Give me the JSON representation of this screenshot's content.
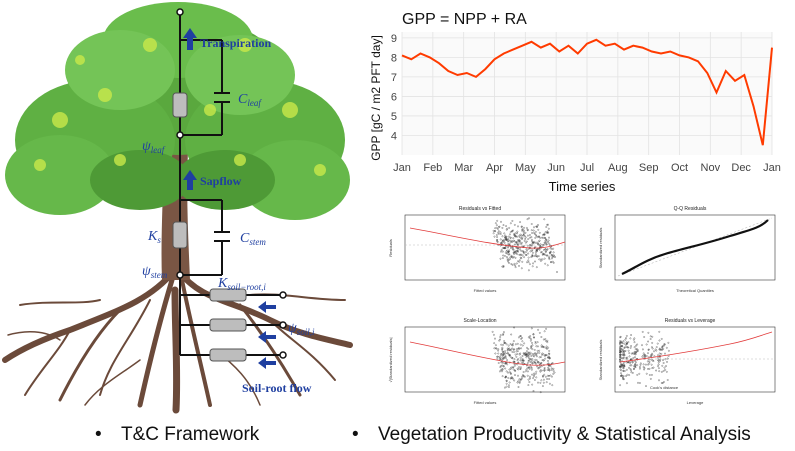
{
  "tree_panel": {
    "labels": {
      "transpiration": "Transpiration",
      "c_leaf": "C",
      "c_leaf_sub": "leaf",
      "psi_leaf": "ψ",
      "psi_leaf_sub": "leaf",
      "sapflow": "Sapflow",
      "ks": "K",
      "ks_sub": "s",
      "c_stem": "C",
      "c_stem_sub": "stem",
      "psi_stem": "ψ",
      "psi_stem_sub": "stem",
      "k_soil_root": "K",
      "k_soil_root_sub": "soil−root,i",
      "psi_soil": "ψ",
      "psi_soil_sub": "soil,i",
      "soil_root_flow": "Soil-root flow"
    }
  },
  "captions": {
    "left": "T&C Framework",
    "right": "Vegetation Productivity & Statistical Analysis",
    "bullet": "•"
  },
  "chart_data": [
    {
      "type": "line",
      "title": "GPP = NPP + RA",
      "xlabel": "Time series",
      "ylabel": "GPP [gC / m2 PFT day]",
      "ylim": [
        3,
        9.3
      ],
      "yticks": [
        "4",
        "5",
        "6",
        "7",
        "8",
        "9"
      ],
      "xticks": [
        "Jan",
        "Feb",
        "Mar",
        "Apr",
        "May",
        "Jun",
        "Jul",
        "Aug",
        "Sep",
        "Oct",
        "Nov",
        "Dec",
        "Jan"
      ],
      "grid": true,
      "color": "#ff3b00",
      "series": [
        {
          "x": [
            0,
            0.3,
            0.6,
            0.9,
            1.2,
            1.5,
            1.8,
            2.1,
            2.4,
            2.7,
            3.0,
            3.3,
            3.6,
            3.9,
            4.2,
            4.5,
            4.8,
            5.1,
            5.4,
            5.7,
            6.0,
            6.3,
            6.6,
            6.9,
            7.2,
            7.5,
            7.8,
            8.1,
            8.4,
            8.7,
            9.0,
            9.3,
            9.6,
            9.9,
            10.2,
            10.5,
            10.8,
            11.1,
            11.4,
            11.7,
            12.0
          ],
          "values": [
            8.1,
            7.9,
            8.2,
            8.0,
            7.7,
            7.3,
            7.1,
            7.2,
            7.0,
            7.4,
            7.9,
            8.2,
            8.4,
            8.6,
            8.8,
            8.5,
            8.7,
            8.3,
            8.6,
            8.2,
            8.7,
            8.9,
            8.6,
            8.7,
            8.4,
            8.6,
            8.5,
            8.3,
            8.2,
            8.3,
            8.1,
            8.0,
            7.8,
            7.2,
            6.2,
            7.3,
            6.8,
            7.1,
            5.5,
            3.5,
            8.5
          ]
        }
      ]
    },
    {
      "type": "scatter",
      "title": "Residuals vs Fitted",
      "xlabel": "Fitted values",
      "ylabel": "Residuals",
      "xticks": [
        "-1",
        "0",
        "1",
        "2",
        "3",
        "4"
      ],
      "yticks": [
        "-4",
        "-2",
        "0",
        "2",
        "4"
      ]
    },
    {
      "type": "scatter",
      "title": "Q-Q Residuals",
      "xlabel": "Theoretical Quantiles",
      "ylabel": "Standardized residuals",
      "xticks": [
        "-3",
        "-2",
        "-1",
        "0",
        "1",
        "2",
        "3"
      ],
      "yticks": [
        "-4",
        "-2",
        "0",
        "2",
        "4"
      ]
    },
    {
      "type": "scatter",
      "title": "Scale-Location",
      "xlabel": "Fitted values",
      "ylabel": "√|Standardized residuals|",
      "xticks": [
        "-1",
        "0",
        "1",
        "2",
        "3",
        "4"
      ],
      "yticks": [
        "0.0",
        "0.5",
        "1.0",
        "1.5",
        "2.0"
      ]
    },
    {
      "type": "scatter",
      "title": "Residuals vs Leverage",
      "xlabel": "Leverage",
      "ylabel": "Standardized residuals",
      "xticks": [
        "0.00",
        "0.01",
        "0.02",
        "0.03",
        "0.04",
        "0.05"
      ],
      "yticks": [
        "-4",
        "-2",
        "0",
        "2",
        "4"
      ],
      "legend": "Cook's distance"
    }
  ]
}
